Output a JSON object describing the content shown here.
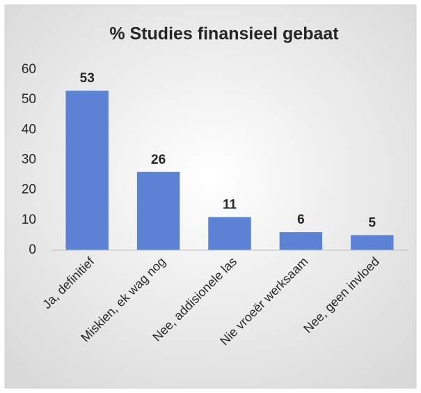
{
  "chart_data": {
    "type": "bar",
    "title": "% Studies finansieel gebaat",
    "categories": [
      "Ja, definitief",
      "Miskien, ek wag nog",
      "Nee, addisionele las",
      "Nie vroeër werksaam",
      "Nee, geen invloed"
    ],
    "values": [
      53,
      26,
      11,
      6,
      5
    ],
    "color": "#5b82d4",
    "ylim": [
      0,
      60
    ],
    "yticks": [
      0,
      10,
      20,
      30,
      40,
      50,
      60
    ],
    "grid": false
  }
}
